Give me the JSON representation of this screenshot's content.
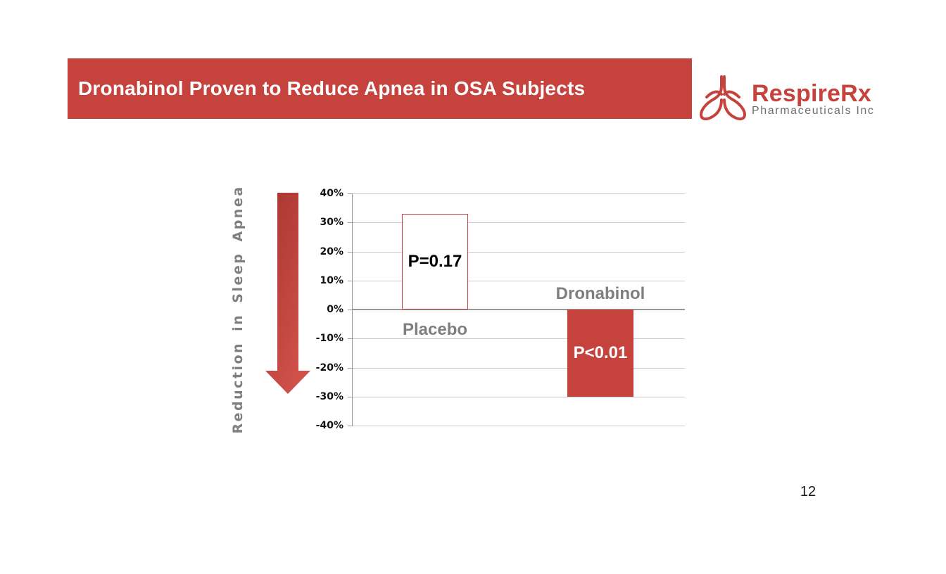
{
  "slide": {
    "title": "Dronabinol Proven to Reduce Apnea in OSA Subjects",
    "page_number": "12",
    "banner_color": "#c6423d",
    "background_color": "#ffffff"
  },
  "logo": {
    "name": "RespireRx",
    "subtitle": "Pharmaceuticals Inc",
    "icon": "lungs-icon",
    "name_color": "#c6423d",
    "subtitle_color": "#6e6e6e"
  },
  "chart_data": {
    "type": "bar",
    "title": "",
    "xlabel": "",
    "ylabel": "Reduction in Sleep Apnea",
    "categories": [
      "Placebo",
      "Dronabinol"
    ],
    "values": [
      33,
      -30
    ],
    "bar_labels": [
      "P=0.17",
      "P<0.01"
    ],
    "bar_fill_colors": [
      "#ffffff",
      "#c6423d"
    ],
    "bar_border_color": "#c6423d",
    "bar_label_colors": [
      "#000000",
      "#ffffff"
    ],
    "ylim": [
      -40,
      40
    ],
    "ytick_step": 10,
    "ytick_labels": [
      "40%",
      "30%",
      "20%",
      "10%",
      "0%",
      "-10%",
      "-20%",
      "-30%",
      "-40%"
    ],
    "grid": true,
    "gridline_color": "#c9c9c9",
    "zero_line_color": "#999999",
    "axis_color": "#999999",
    "category_label_color": "#7f7f7f",
    "ylabel_color": "#7f7f7f",
    "annotation_arrow": "red-gradient-down-arrow"
  }
}
